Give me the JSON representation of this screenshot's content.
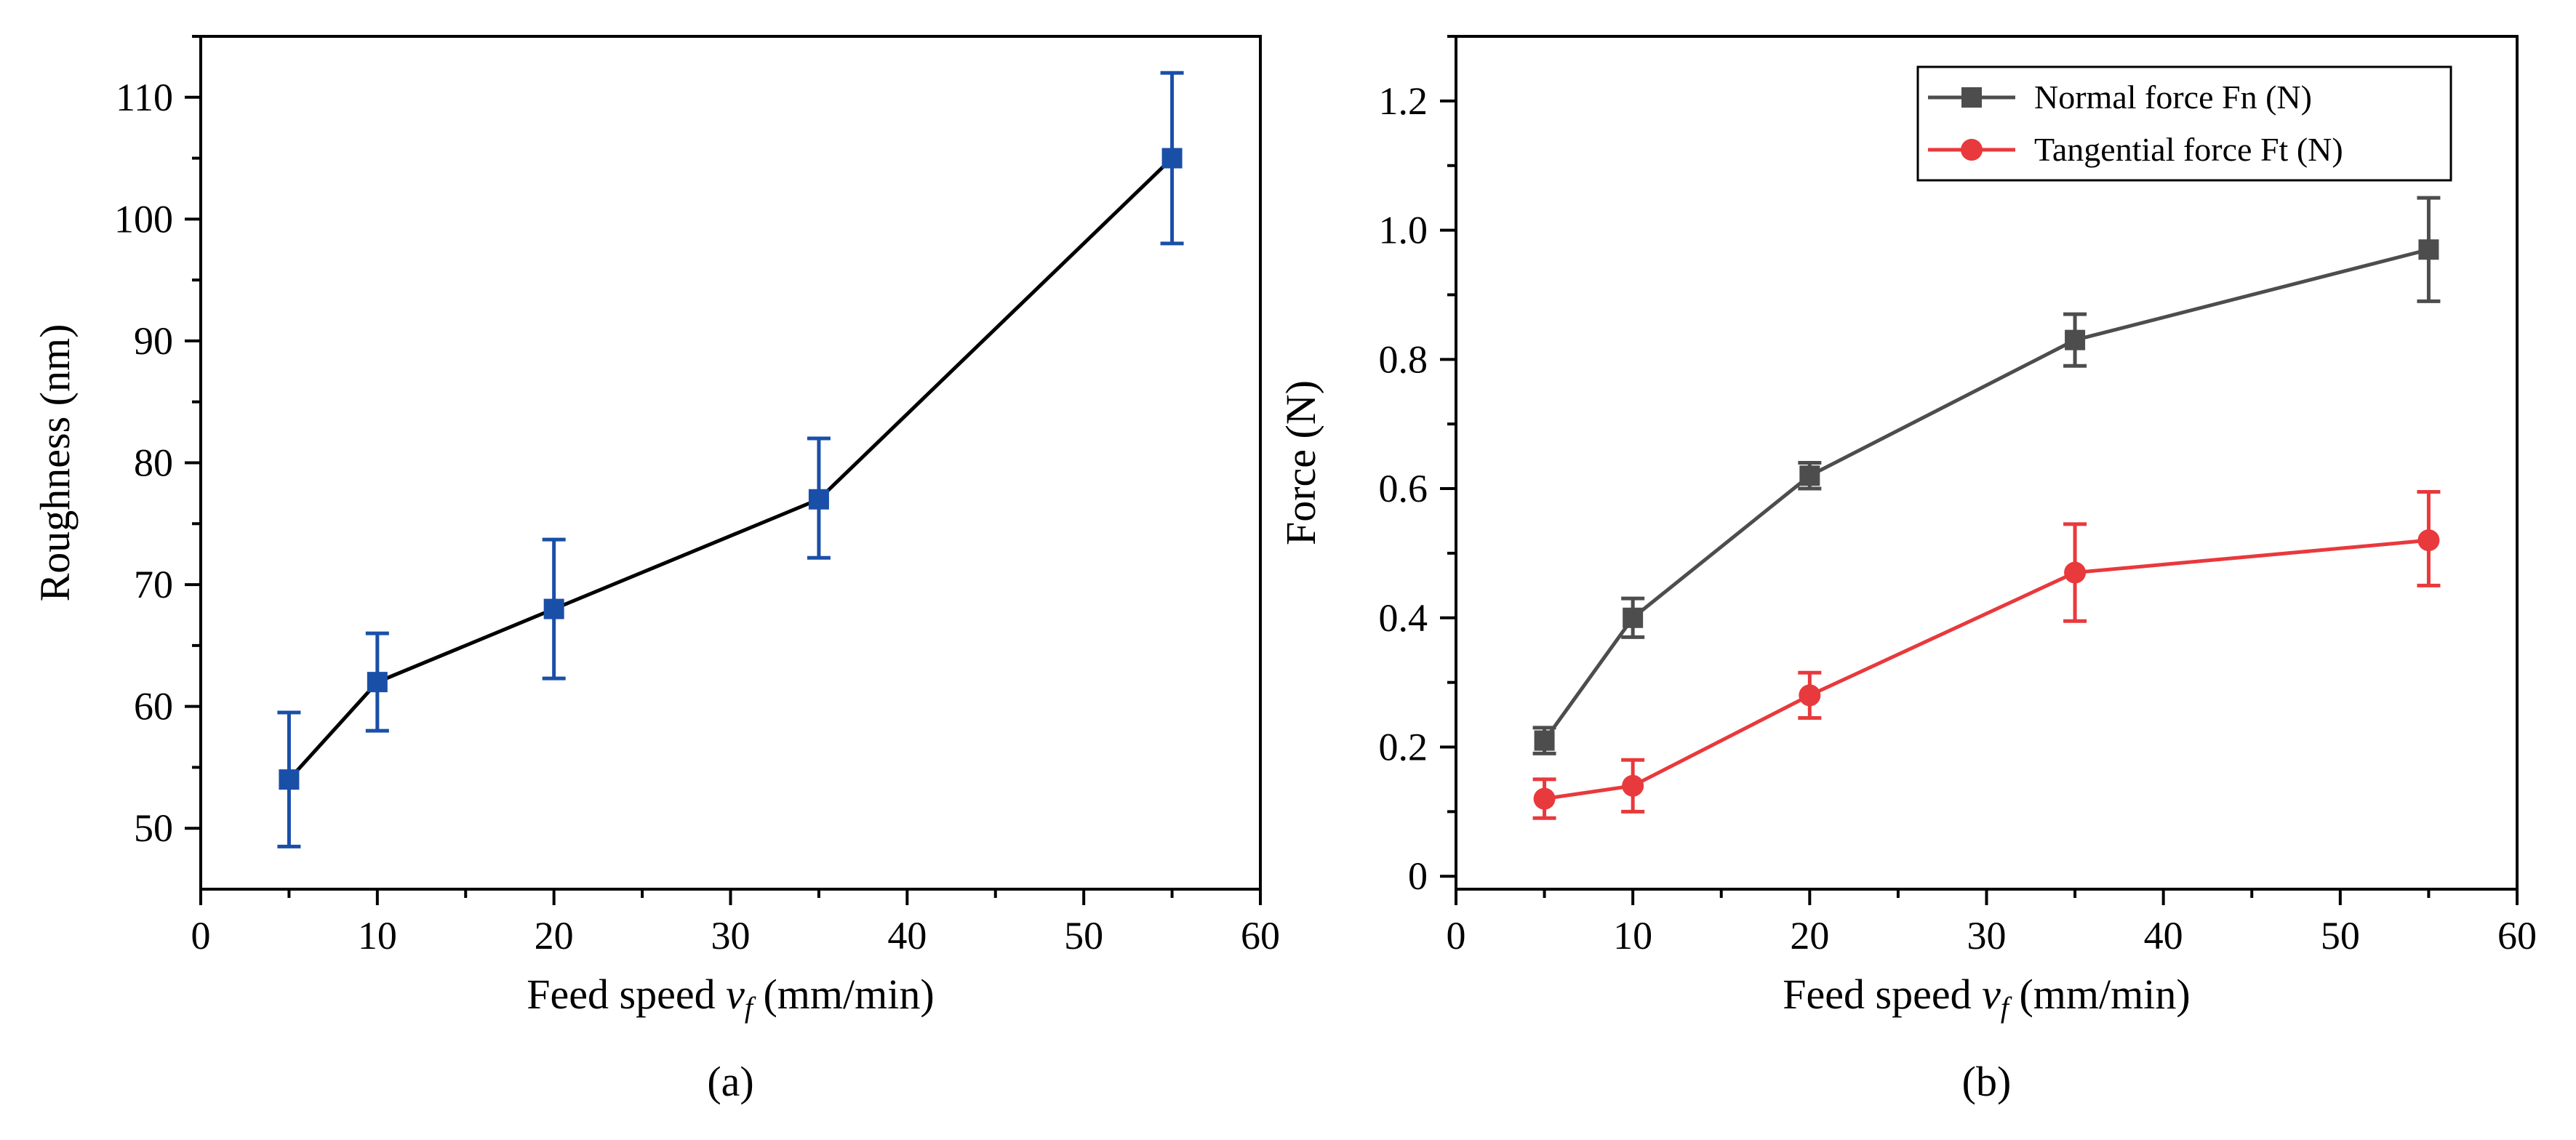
{
  "chart_data": [
    {
      "type": "line",
      "panel_label": "(a)",
      "xlabel_prefix": "Feed speed ",
      "xlabel_var": "v",
      "xlabel_sub": "f",
      "xlabel_suffix": " (mm/min)",
      "ylabel": "Roughness (nm)",
      "xlim": [
        0,
        60
      ],
      "ylim": [
        45,
        115
      ],
      "xticks": [
        "0",
        "10",
        "20",
        "30",
        "40",
        "50",
        "60"
      ],
      "yticks": [
        "50",
        "60",
        "70",
        "80",
        "90",
        "100",
        "110"
      ],
      "series": [
        {
          "name": "Roughness",
          "marker": "square",
          "line_color": "#000000",
          "marker_color": "#1a4fa8",
          "error_color": "#1a4fa8",
          "x": [
            5,
            10,
            20,
            35,
            55
          ],
          "y": [
            54,
            62,
            68,
            77,
            105
          ],
          "err_low": [
            48.5,
            58,
            62.3,
            72.2,
            98
          ],
          "err_high": [
            59.5,
            66,
            73.7,
            82,
            112
          ]
        }
      ]
    },
    {
      "type": "line",
      "panel_label": "(b)",
      "xlabel_prefix": "Feed speed ",
      "xlabel_var": "v",
      "xlabel_sub": "f",
      "xlabel_suffix": " (mm/min)",
      "ylabel": "Force (N)",
      "xlim": [
        0,
        60
      ],
      "ylim": [
        -0.02,
        1.3
      ],
      "xticks": [
        "0",
        "10",
        "20",
        "30",
        "40",
        "50",
        "60"
      ],
      "yticks": [
        "0",
        "0.2",
        "0.4",
        "0.6",
        "0.8",
        "1.0",
        "1.2"
      ],
      "legend_position": "top-right",
      "series": [
        {
          "name": "Normal force Fn (N)",
          "marker": "square",
          "line_color": "#4d4d4d",
          "marker_color": "#4d4d4d",
          "error_color": "#4d4d4d",
          "x": [
            5,
            10,
            20,
            35,
            55
          ],
          "y": [
            0.21,
            0.4,
            0.62,
            0.83,
            0.97
          ],
          "err_low": [
            0.19,
            0.37,
            0.6,
            0.79,
            0.89
          ],
          "err_high": [
            0.23,
            0.43,
            0.64,
            0.87,
            1.05
          ]
        },
        {
          "name": "Tangential force Ft (N)",
          "marker": "circle",
          "line_color": "#e8393c",
          "marker_color": "#e8393c",
          "error_color": "#e8393c",
          "x": [
            5,
            10,
            20,
            35,
            55
          ],
          "y": [
            0.12,
            0.14,
            0.28,
            0.47,
            0.52
          ],
          "err_low": [
            0.09,
            0.1,
            0.245,
            0.395,
            0.45
          ],
          "err_high": [
            0.15,
            0.18,
            0.315,
            0.545,
            0.595
          ]
        }
      ]
    }
  ]
}
